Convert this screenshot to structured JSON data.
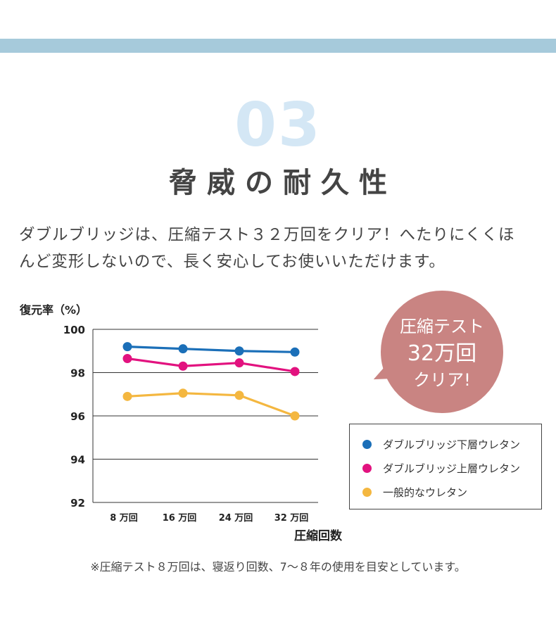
{
  "section": {
    "number": "03",
    "title": "脅威の耐久性"
  },
  "intro": {
    "line1": "ダブルブリッジは、圧縮テスト３２万回をクリア！へたりにくくほ",
    "line2": "んど変形しないので、長く安心してお使いいただけます。"
  },
  "badge": {
    "line1": "圧縮テスト",
    "line2": "32万回",
    "line3": "クリア!"
  },
  "colors": {
    "band": "#a6cadb",
    "badge": "#c98482",
    "series_blue": "#1b6fb8",
    "series_magenta": "#e2127f",
    "series_yellow": "#f4b740"
  },
  "chart_data": {
    "type": "line",
    "ylabel": "復元率（%）",
    "xlabel": "圧縮回数",
    "categories": [
      "8 万回",
      "16 万回",
      "24 万回",
      "32 万回"
    ],
    "ylim": [
      92,
      100
    ],
    "yticks": [
      "100",
      "98",
      "96",
      "94",
      "92"
    ],
    "grid": true,
    "legend_position": "right",
    "series": [
      {
        "name": "ダブルブリッジ下層ウレタン",
        "color": "#1b6fb8",
        "values": [
          99.2,
          99.1,
          99.0,
          98.95
        ]
      },
      {
        "name": "ダブルブリッジ上層ウレタン",
        "color": "#e2127f",
        "values": [
          98.65,
          98.3,
          98.45,
          98.05
        ]
      },
      {
        "name": "一般的なウレタン",
        "color": "#f4b740",
        "values": [
          96.9,
          97.05,
          96.95,
          96.0
        ]
      }
    ]
  },
  "footnote": "※圧縮テスト８万回は、寝返り回数、7～８年の使用を目安としています。"
}
